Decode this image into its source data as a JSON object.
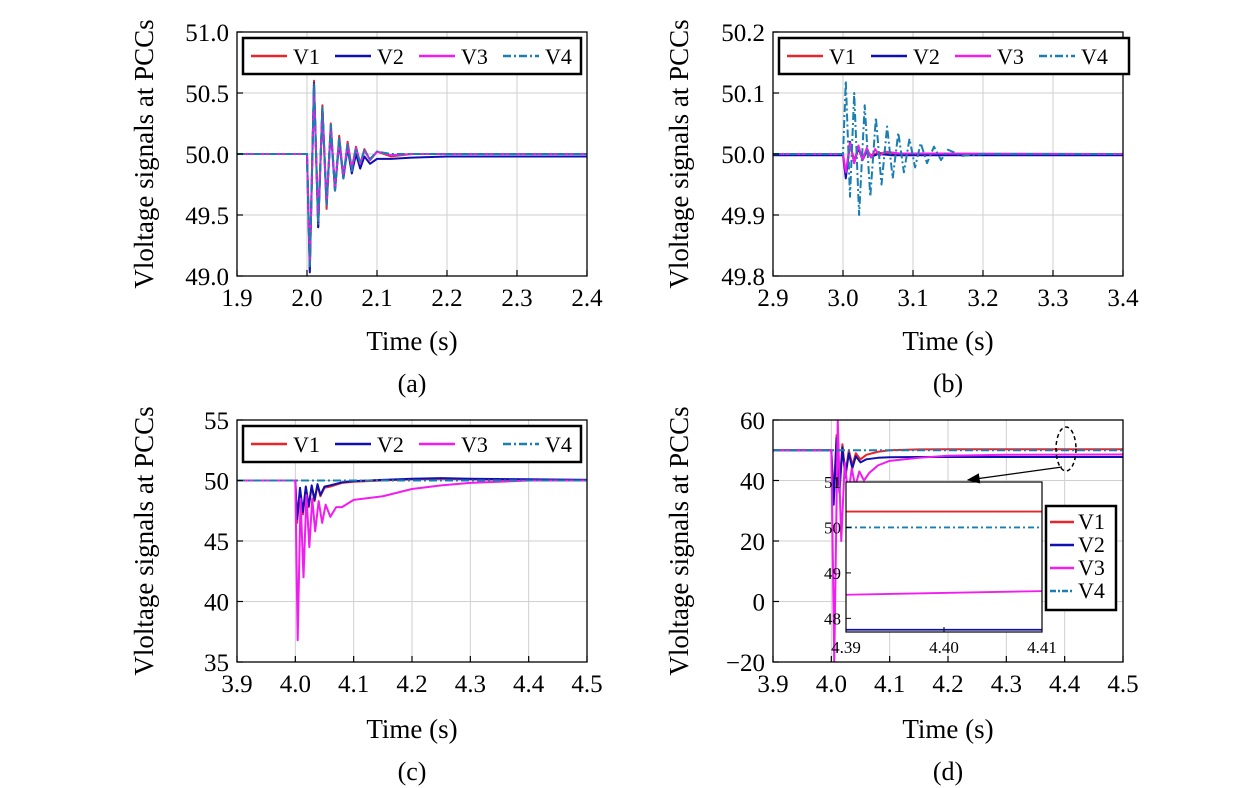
{
  "colors": {
    "V1": "#e8252a",
    "V2": "#1010b0",
    "V3": "#f01cf0",
    "V4": "#1a7fb0"
  },
  "chart_data": [
    {
      "id": "a",
      "type": "line",
      "caption": "(a)",
      "xlabel": "Time (s)",
      "ylabel": "Vloltage signals at PCCs",
      "xlim": [
        1.9,
        2.4
      ],
      "ylim": [
        49.0,
        51.0
      ],
      "xticks": [
        "1.9",
        "2.0",
        "2.1",
        "2.2",
        "2.3",
        "2.4"
      ],
      "yticks": [
        "49.0",
        "49.5",
        "50.0",
        "50.5",
        "51.0"
      ],
      "grid": true,
      "legend": "top, horizontal",
      "series": [
        {
          "name": "V1",
          "x": [
            1.9,
            2.0,
            2.004,
            2.01,
            2.016,
            2.022,
            2.028,
            2.034,
            2.04,
            2.046,
            2.052,
            2.058,
            2.064,
            2.07,
            2.076,
            2.082,
            2.09,
            2.1,
            2.12,
            2.15,
            2.4
          ],
          "y": [
            50.0,
            50.0,
            49.05,
            50.6,
            49.4,
            50.4,
            49.55,
            50.25,
            49.7,
            50.15,
            49.8,
            50.1,
            49.88,
            50.06,
            49.92,
            50.04,
            49.95,
            50.02,
            49.98,
            50.0,
            50.0
          ]
        },
        {
          "name": "V2",
          "x": [
            1.9,
            2.0,
            2.004,
            2.01,
            2.016,
            2.022,
            2.028,
            2.034,
            2.04,
            2.046,
            2.052,
            2.058,
            2.064,
            2.07,
            2.076,
            2.082,
            2.09,
            2.1,
            2.12,
            2.15,
            2.2,
            2.4
          ],
          "y": [
            50.0,
            50.0,
            49.03,
            50.58,
            49.4,
            50.38,
            49.6,
            50.2,
            49.7,
            50.1,
            49.8,
            50.05,
            49.84,
            50.0,
            49.88,
            49.98,
            49.92,
            49.96,
            49.96,
            49.97,
            49.98,
            49.98
          ]
        },
        {
          "name": "V3",
          "x": [
            1.9,
            2.0,
            2.004,
            2.01,
            2.016,
            2.022,
            2.028,
            2.034,
            2.04,
            2.046,
            2.052,
            2.058,
            2.064,
            2.07,
            2.076,
            2.082,
            2.09,
            2.1,
            2.12,
            2.15,
            2.4
          ],
          "y": [
            50.0,
            50.0,
            49.1,
            50.55,
            49.45,
            50.35,
            49.6,
            50.22,
            49.72,
            50.12,
            49.82,
            50.08,
            49.88,
            50.05,
            49.92,
            50.03,
            49.95,
            50.02,
            49.99,
            50.0,
            50.0
          ]
        },
        {
          "name": "V4",
          "x": [
            1.9,
            2.0,
            2.004,
            2.01,
            2.016,
            2.022,
            2.028,
            2.034,
            2.04,
            2.046,
            2.052,
            2.058,
            2.064,
            2.07,
            2.076,
            2.082,
            2.09,
            2.1,
            2.12,
            2.15,
            2.4
          ],
          "y": [
            50.0,
            50.0,
            49.08,
            50.58,
            49.42,
            50.38,
            49.58,
            50.24,
            49.7,
            50.14,
            49.8,
            50.08,
            49.86,
            50.05,
            49.92,
            50.03,
            49.96,
            50.02,
            50.0,
            50.0,
            50.0
          ]
        }
      ]
    },
    {
      "id": "b",
      "type": "line",
      "caption": "(b)",
      "xlabel": "Time (s)",
      "ylabel": "Vloltage signals at PCCs",
      "xlim": [
        2.9,
        3.4
      ],
      "ylim": [
        49.8,
        50.2
      ],
      "xticks": [
        "2.9",
        "3.0",
        "3.1",
        "3.2",
        "3.3",
        "3.4"
      ],
      "yticks": [
        "49.8",
        "49.9",
        "50.0",
        "50.1",
        "50.2"
      ],
      "grid": true,
      "legend": "top, horizontal",
      "series": [
        {
          "name": "V1",
          "x": [
            2.9,
            3.0,
            3.004,
            3.01,
            3.016,
            3.022,
            3.028,
            3.034,
            3.04,
            3.05,
            3.07,
            3.4
          ],
          "y": [
            50.0,
            50.0,
            49.965,
            50.015,
            49.99,
            50.01,
            49.995,
            50.005,
            49.998,
            50.002,
            50.0,
            50.0
          ]
        },
        {
          "name": "V2",
          "x": [
            2.9,
            3.0,
            3.004,
            3.01,
            3.016,
            3.022,
            3.028,
            3.034,
            3.04,
            3.05,
            3.07,
            3.4
          ],
          "y": [
            49.998,
            49.998,
            49.96,
            50.02,
            49.985,
            50.01,
            49.99,
            50.005,
            49.995,
            50.0,
            49.998,
            49.998
          ]
        },
        {
          "name": "V3",
          "x": [
            2.9,
            3.0,
            3.004,
            3.01,
            3.016,
            3.022,
            3.028,
            3.034,
            3.04,
            3.046,
            3.052,
            3.06,
            3.08,
            3.4
          ],
          "y": [
            50.0,
            50.0,
            49.97,
            50.018,
            49.985,
            50.014,
            49.99,
            50.01,
            49.994,
            50.008,
            49.997,
            50.004,
            50.001,
            50.0
          ]
        },
        {
          "name": "V4",
          "x": [
            2.9,
            3.0,
            3.004,
            3.01,
            3.016,
            3.023,
            3.031,
            3.039,
            3.047,
            3.055,
            3.063,
            3.071,
            3.079,
            3.087,
            3.095,
            3.103,
            3.111,
            3.12,
            3.13,
            3.14,
            3.15,
            3.17,
            3.2,
            3.4
          ],
          "y": [
            50.0,
            50.0,
            50.12,
            49.93,
            50.1,
            49.9,
            50.08,
            49.93,
            50.06,
            49.95,
            50.045,
            49.96,
            50.035,
            49.97,
            50.025,
            49.978,
            50.018,
            49.985,
            50.012,
            49.99,
            50.007,
            49.997,
            50.0,
            50.0
          ]
        }
      ]
    },
    {
      "id": "c",
      "type": "line",
      "caption": "(c)",
      "xlabel": "Time (s)",
      "ylabel": "Vloltage signals at PCCs",
      "xlim": [
        3.9,
        4.5
      ],
      "ylim": [
        35,
        55
      ],
      "xticks": [
        "3.9",
        "4.0",
        "4.1",
        "4.2",
        "4.3",
        "4.4",
        "4.5"
      ],
      "yticks": [
        "35",
        "40",
        "45",
        "50",
        "55"
      ],
      "grid": true,
      "legend": "top, horizontal",
      "series": [
        {
          "name": "V1",
          "x": [
            3.9,
            4.0,
            4.003,
            4.008,
            4.013,
            4.018,
            4.023,
            4.028,
            4.033,
            4.038,
            4.043,
            4.05,
            4.06,
            4.08,
            4.1,
            4.15,
            4.2,
            4.25,
            4.3,
            4.4,
            4.5
          ],
          "y": [
            50,
            50,
            46.5,
            49.2,
            47.2,
            49.4,
            47.8,
            49.5,
            48.3,
            49.6,
            48.7,
            49.4,
            49.5,
            49.8,
            49.9,
            50.0,
            50.1,
            50.15,
            50.1,
            50.05,
            50.05
          ]
        },
        {
          "name": "V2",
          "x": [
            3.9,
            4.0,
            4.003,
            4.008,
            4.013,
            4.018,
            4.023,
            4.028,
            4.033,
            4.038,
            4.043,
            4.05,
            4.06,
            4.08,
            4.1,
            4.15,
            4.2,
            4.25,
            4.3,
            4.4,
            4.5
          ],
          "y": [
            50,
            50,
            46.8,
            49.4,
            47.4,
            49.5,
            47.9,
            49.6,
            48.4,
            49.7,
            48.8,
            49.5,
            49.6,
            49.85,
            49.95,
            50.05,
            50.15,
            50.2,
            50.15,
            50.1,
            50.05
          ]
        },
        {
          "name": "V3",
          "x": [
            3.9,
            4.0,
            4.004,
            4.009,
            4.014,
            4.019,
            4.024,
            4.029,
            4.034,
            4.04,
            4.046,
            4.052,
            4.06,
            4.07,
            4.08,
            4.1,
            4.15,
            4.2,
            4.25,
            4.3,
            4.35,
            4.4,
            4.5
          ],
          "y": [
            50,
            50,
            36.8,
            48.5,
            42.0,
            48.8,
            44.5,
            48.5,
            45.8,
            48.3,
            46.5,
            48.0,
            47.0,
            47.8,
            47.8,
            48.4,
            48.7,
            49.3,
            49.6,
            49.8,
            49.9,
            50.0,
            50.0
          ]
        },
        {
          "name": "V4",
          "x": [
            3.9,
            4.5
          ],
          "y": [
            50,
            50
          ]
        }
      ]
    },
    {
      "id": "d",
      "type": "line",
      "caption": "(d)",
      "xlabel": "Time (s)",
      "ylabel": "Vloltage signals at PCCs",
      "xlim": [
        3.9,
        4.5
      ],
      "ylim": [
        -20,
        60
      ],
      "xticks": [
        "3.9",
        "4.0",
        "4.1",
        "4.2",
        "4.3",
        "4.4",
        "4.5"
      ],
      "yticks": [
        "−20",
        "0",
        "20",
        "40",
        "60"
      ],
      "grid": true,
      "legend": "right, vertical, inside inset",
      "series": [
        {
          "name": "V1",
          "x": [
            3.9,
            4.0,
            4.004,
            4.009,
            4.014,
            4.019,
            4.024,
            4.03,
            4.036,
            4.042,
            4.05,
            4.06,
            4.08,
            4.1,
            4.15,
            4.2,
            4.5
          ],
          "y": [
            50,
            50,
            35,
            55,
            38,
            52,
            42,
            50,
            45,
            49,
            47,
            48.5,
            49.5,
            50,
            50.3,
            50.35,
            50.35
          ]
        },
        {
          "name": "V2",
          "x": [
            3.9,
            4.0,
            4.004,
            4.009,
            4.014,
            4.019,
            4.024,
            4.03,
            4.036,
            4.042,
            4.05,
            4.06,
            4.08,
            4.1,
            4.15,
            4.2,
            4.5
          ],
          "y": [
            50,
            50,
            32,
            54,
            36,
            51,
            41,
            49,
            44,
            48,
            46,
            47,
            47.5,
            47.7,
            47.75,
            47.75,
            47.75
          ]
        },
        {
          "name": "V3",
          "x": [
            3.9,
            4.0,
            4.005,
            4.011,
            4.017,
            4.023,
            4.029,
            4.035,
            4.041,
            4.048,
            4.056,
            4.065,
            4.08,
            4.1,
            4.15,
            4.2,
            4.3,
            4.5
          ],
          "y": [
            50,
            50,
            -20,
            60,
            20,
            46,
            35,
            44,
            38,
            43,
            40,
            42.5,
            45,
            46.5,
            47.5,
            48.2,
            48.5,
            48.6
          ]
        },
        {
          "name": "V4",
          "x": [
            3.9,
            4.5
          ],
          "y": [
            50,
            50
          ]
        }
      ],
      "inset": {
        "xlim": [
          4.39,
          4.41
        ],
        "ylim": [
          47.7,
          51
        ],
        "xticks": [
          "4.39",
          "4.40",
          "4.41"
        ],
        "yticks": [
          "48",
          "49",
          "50",
          "51"
        ],
        "series": [
          {
            "name": "V1",
            "x": [
              4.39,
              4.41
            ],
            "y": [
              50.35,
              50.35
            ]
          },
          {
            "name": "V2",
            "x": [
              4.39,
              4.41
            ],
            "y": [
              47.75,
              47.75
            ]
          },
          {
            "name": "V3",
            "x": [
              4.39,
              4.41
            ],
            "y": [
              48.52,
              48.6
            ]
          },
          {
            "name": "V4",
            "x": [
              4.39,
              4.41
            ],
            "y": [
              50.0,
              50.0
            ]
          }
        ]
      }
    }
  ]
}
